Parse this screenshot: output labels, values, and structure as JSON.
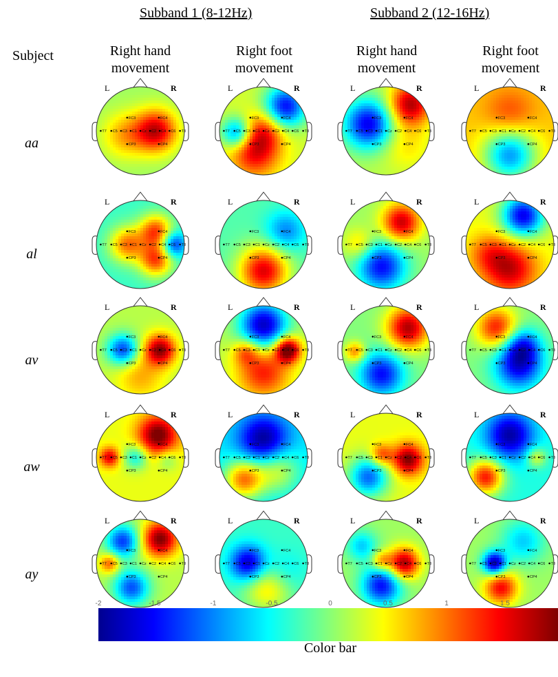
{
  "subbands": [
    "Subband 1 (8-12Hz)",
    "Subband 2 (12-16Hz)"
  ],
  "subject_header": "Subject",
  "columns": [
    {
      "line1": "Right hand",
      "line2": "movement"
    },
    {
      "line1": "Right foot",
      "line2": "movement"
    },
    {
      "line1": "Right hand",
      "line2": "movement"
    },
    {
      "line1": "Right foot",
      "line2": "movement"
    }
  ],
  "subjects": [
    "aa",
    "al",
    "av",
    "aw",
    "ay"
  ],
  "head_labels": {
    "left": "L",
    "right": "R"
  },
  "electrodes": [
    "T7",
    "C5",
    "C3",
    "C1",
    "Cz",
    "C2",
    "C4",
    "C6",
    "T8",
    "FC3",
    "FC4",
    "CP3",
    "CP4"
  ],
  "colorbar": {
    "label": "Color bar",
    "ticks": [
      "-2",
      "-1.5",
      "-1",
      "-0.5",
      "0",
      "0.5",
      "1",
      "1.5"
    ],
    "tick_values": [
      -2,
      -1.5,
      -1,
      -0.5,
      0,
      0.5,
      1,
      1.5
    ],
    "range": [
      -2,
      2
    ],
    "colors": [
      "#00008f",
      "#0000ff",
      "#00ffff",
      "#ffff00",
      "#ff0000",
      "#800000"
    ]
  },
  "topomaps": [
    [
      {
        "base": 0.1,
        "blobs": [
          [
            0.35,
            0.0,
            1.6,
            0.22
          ],
          [
            -0.35,
            0.1,
            0.7,
            0.25
          ]
        ]
      },
      {
        "base": 0.3,
        "blobs": [
          [
            0.5,
            -0.55,
            -1.8,
            0.22
          ],
          [
            -0.6,
            0.05,
            -1.4,
            0.12
          ],
          [
            -0.2,
            0.5,
            1.2,
            0.3
          ],
          [
            0.0,
            0.0,
            0.9,
            0.2
          ]
        ]
      },
      {
        "base": 0.2,
        "blobs": [
          [
            -0.4,
            -0.15,
            -1.8,
            0.3
          ],
          [
            0.55,
            -0.6,
            1.6,
            0.22
          ],
          [
            0.45,
            0.3,
            0.4,
            0.3
          ]
        ]
      },
      {
        "base": 0.7,
        "blobs": [
          [
            0.0,
            0.55,
            -1.6,
            0.35
          ],
          [
            0.0,
            -0.4,
            0.5,
            0.3
          ]
        ]
      }
    ],
    [
      {
        "base": -0.3,
        "blobs": [
          [
            -0.3,
            0.0,
            1.3,
            0.16
          ],
          [
            0.35,
            -0.3,
            1.5,
            0.14
          ],
          [
            0.35,
            0.35,
            1.5,
            0.14
          ],
          [
            0.75,
            0.0,
            -1.2,
            0.08
          ]
        ]
      },
      {
        "base": -0.2,
        "blobs": [
          [
            0.0,
            0.6,
            1.8,
            0.3
          ],
          [
            0.5,
            -0.3,
            -0.8,
            0.2
          ]
        ]
      },
      {
        "base": 0.1,
        "blobs": [
          [
            0.35,
            -0.5,
            1.6,
            0.18
          ],
          [
            -0.1,
            0.5,
            -1.6,
            0.3
          ],
          [
            -0.6,
            0.0,
            0.6,
            0.12
          ]
        ]
      },
      {
        "base": 0.4,
        "blobs": [
          [
            0.3,
            -0.65,
            -2.0,
            0.22
          ],
          [
            0.0,
            0.55,
            1.3,
            0.35
          ],
          [
            -0.5,
            0.2,
            0.6,
            0.2
          ]
        ]
      }
    ],
    [
      {
        "base": 0.2,
        "blobs": [
          [
            -0.4,
            0.0,
            -1.5,
            0.12
          ],
          [
            0.45,
            0.0,
            1.7,
            0.12
          ],
          [
            0.0,
            0.6,
            0.6,
            0.3
          ]
        ]
      },
      {
        "base": 0.2,
        "blobs": [
          [
            0.0,
            -0.55,
            -2.0,
            0.28
          ],
          [
            0.0,
            0.5,
            1.2,
            0.35
          ],
          [
            0.55,
            0.0,
            2.0,
            0.08
          ],
          [
            -0.4,
            0.05,
            0.8,
            0.08
          ]
        ]
      },
      {
        "base": 0.0,
        "blobs": [
          [
            0.5,
            -0.5,
            1.8,
            0.22
          ],
          [
            -0.1,
            0.55,
            -1.5,
            0.25
          ],
          [
            -0.7,
            0.05,
            1.0,
            0.05
          ]
        ]
      },
      {
        "base": 0.0,
        "blobs": [
          [
            -0.3,
            -0.5,
            1.4,
            0.2
          ],
          [
            0.2,
            0.35,
            -1.6,
            0.3
          ],
          [
            0.3,
            -0.1,
            -1.0,
            0.15
          ]
        ]
      }
    ],
    [
      {
        "base": 0.4,
        "blobs": [
          [
            0.4,
            -0.5,
            1.7,
            0.2
          ],
          [
            -0.7,
            0.0,
            1.2,
            0.05
          ],
          [
            -0.1,
            0.0,
            -0.9,
            0.08
          ],
          [
            0.6,
            0.05,
            -0.5,
            0.06
          ]
        ]
      },
      {
        "base": -0.6,
        "blobs": [
          [
            -0.45,
            0.5,
            1.6,
            0.2
          ],
          [
            0.3,
            0.3,
            0.9,
            0.25
          ],
          [
            0.0,
            -0.4,
            -1.4,
            0.3
          ]
        ]
      },
      {
        "base": 0.4,
        "blobs": [
          [
            0.5,
            0.05,
            1.6,
            0.12
          ],
          [
            -0.4,
            0.45,
            -1.5,
            0.2
          ],
          [
            -0.1,
            -0.05,
            0.9,
            0.06
          ]
        ]
      },
      {
        "base": -0.4,
        "blobs": [
          [
            -0.55,
            0.45,
            1.8,
            0.16
          ],
          [
            0.0,
            -0.5,
            -1.5,
            0.28
          ],
          [
            0.6,
            0.0,
            0.8,
            0.05
          ]
        ]
      }
    ],
    [
      {
        "base": 0.2,
        "blobs": [
          [
            0.45,
            -0.55,
            1.8,
            0.16
          ],
          [
            -0.4,
            -0.5,
            -1.5,
            0.14
          ],
          [
            -0.2,
            0.55,
            -1.4,
            0.16
          ],
          [
            -0.7,
            0.0,
            1.0,
            0.05
          ]
        ]
      },
      {
        "base": -0.3,
        "blobs": [
          [
            -0.35,
            0.0,
            -1.5,
            0.16
          ],
          [
            0.1,
            0.55,
            0.9,
            0.3
          ],
          [
            0.45,
            0.2,
            -0.4,
            0.2
          ]
        ]
      },
      {
        "base": 0.1,
        "blobs": [
          [
            0.4,
            0.0,
            1.8,
            0.12
          ],
          [
            -0.1,
            0.5,
            -1.6,
            0.2
          ],
          [
            -0.55,
            -0.4,
            -0.8,
            0.12
          ],
          [
            -0.1,
            -0.05,
            0.9,
            0.05
          ]
        ]
      },
      {
        "base": 0.1,
        "blobs": [
          [
            -0.35,
            0.0,
            -2.0,
            0.07
          ],
          [
            -0.2,
            0.55,
            1.4,
            0.14
          ],
          [
            0.3,
            -0.5,
            -0.8,
            0.25
          ]
        ]
      }
    ]
  ]
}
